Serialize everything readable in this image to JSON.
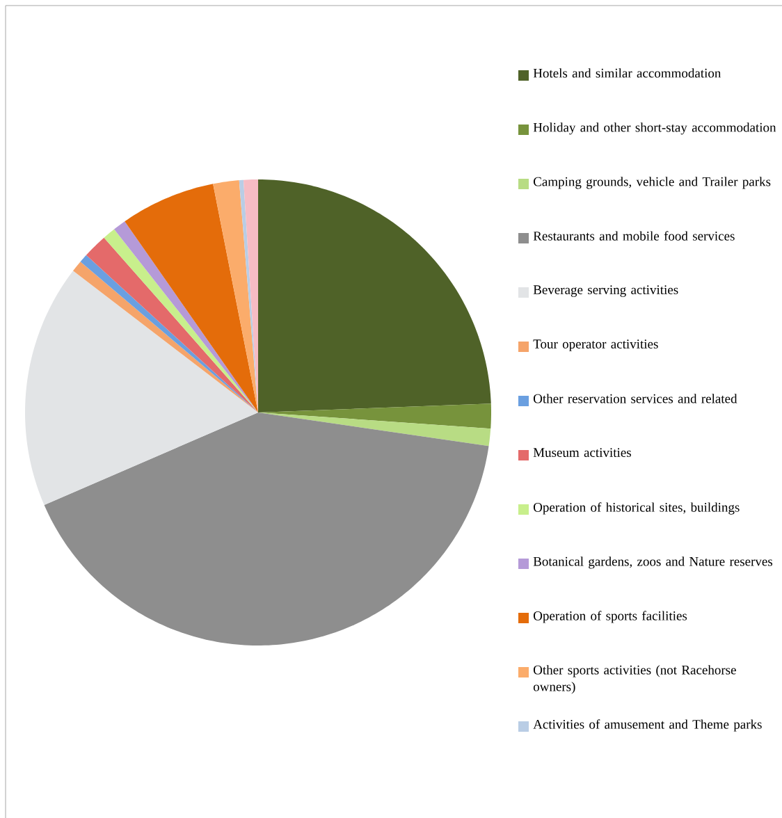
{
  "chart_data": {
    "type": "pie",
    "categories": [
      "Hotels and similar accommodation",
      "Holiday and other short-stay accommodation",
      "Camping grounds, vehicle and Trailer parks",
      "Restaurants and mobile food services",
      "Beverage serving activities",
      "Tour operator activities",
      "Other reservation services and related",
      "Museum activities",
      "Operation of historical sites, buildings",
      "Botanical gardens, zoos and Nature reserves",
      "Operation of sports facilities",
      "Other sports activities (not Racehorse owners)",
      "Activities of amusement and Theme parks",
      null
    ],
    "values": [
      24.4,
      1.7,
      1.2,
      41.2,
      16.9,
      0.8,
      0.6,
      1.7,
      0.9,
      0.9,
      6.6,
      1.8,
      0.3,
      1.0
    ],
    "colors": [
      "#4f6228",
      "#77933c",
      "#b8dc84",
      "#8e8e8e",
      "#e2e4e6",
      "#f5a46a",
      "#6a9fe0",
      "#e46a6a",
      "#c8ef8c",
      "#b59ad8",
      "#e46c0a",
      "#fbac6b",
      "#b9cde5",
      "#f6bcc4"
    ],
    "legend": "right"
  }
}
